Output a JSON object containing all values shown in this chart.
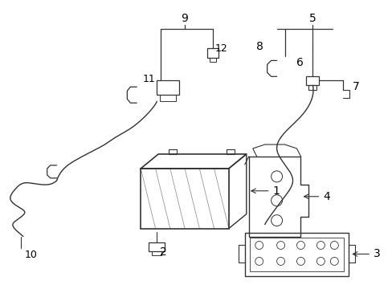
{
  "background": "#ffffff",
  "line_color": "#333333",
  "text_color": "#000000",
  "fig_width": 4.89,
  "fig_height": 3.6,
  "dpi": 100,
  "font_size": 10
}
